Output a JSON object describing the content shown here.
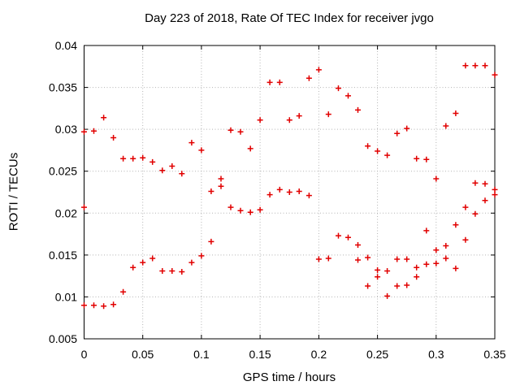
{
  "page": {
    "background": "#ffffff"
  },
  "chart_data": {
    "type": "scatter",
    "title": "Day 223 of 2018, Rate Of TEC Index for receiver jvgo",
    "xlabel": "GPS time / hours",
    "ylabel": "ROTI / TECUs",
    "xlim": [
      0,
      0.35
    ],
    "ylim": [
      0.005,
      0.04
    ],
    "xticks": [
      0,
      0.05,
      0.1,
      0.15,
      0.2,
      0.25,
      0.3,
      0.35
    ],
    "xtick_labels": [
      "0",
      "0.05",
      "0.1",
      "0.15",
      "0.2",
      "0.25",
      "0.3",
      "0.35"
    ],
    "yticks": [
      0.005,
      0.01,
      0.015,
      0.02,
      0.025,
      0.03,
      0.035,
      0.04
    ],
    "ytick_labels": [
      "0.005",
      "0.01",
      "0.015",
      "0.02",
      "0.025",
      "0.03",
      "0.035",
      "0.04"
    ],
    "grid": true,
    "grid_style": "dotted",
    "legend_position": "none",
    "marker": "plus",
    "marker_color": "#e10000",
    "grid_color": "#b3b3b3",
    "axis_color": "#000000",
    "points": [
      [
        0.0,
        0.0297
      ],
      [
        0.0,
        0.0207
      ],
      [
        0.0,
        0.009
      ],
      [
        0.0083,
        0.0298
      ],
      [
        0.0083,
        0.009
      ],
      [
        0.0167,
        0.0314
      ],
      [
        0.0167,
        0.0089
      ],
      [
        0.025,
        0.029
      ],
      [
        0.025,
        0.0091
      ],
      [
        0.0333,
        0.0265
      ],
      [
        0.0333,
        0.0106
      ],
      [
        0.0417,
        0.0265
      ],
      [
        0.0417,
        0.0135
      ],
      [
        0.05,
        0.0266
      ],
      [
        0.05,
        0.0141
      ],
      [
        0.0583,
        0.0261
      ],
      [
        0.0583,
        0.0146
      ],
      [
        0.0667,
        0.0251
      ],
      [
        0.0667,
        0.0131
      ],
      [
        0.075,
        0.0256
      ],
      [
        0.075,
        0.0131
      ],
      [
        0.0833,
        0.0247
      ],
      [
        0.0833,
        0.013
      ],
      [
        0.0917,
        0.0284
      ],
      [
        0.0917,
        0.0141
      ],
      [
        0.1,
        0.0275
      ],
      [
        0.1,
        0.0149
      ],
      [
        0.1083,
        0.0226
      ],
      [
        0.1083,
        0.0166
      ],
      [
        0.1167,
        0.0241
      ],
      [
        0.1167,
        0.0232
      ],
      [
        0.125,
        0.0299
      ],
      [
        0.125,
        0.0207
      ],
      [
        0.1333,
        0.0297
      ],
      [
        0.1333,
        0.0203
      ],
      [
        0.1417,
        0.0277
      ],
      [
        0.1417,
        0.0201
      ],
      [
        0.15,
        0.0311
      ],
      [
        0.15,
        0.0204
      ],
      [
        0.1583,
        0.0356
      ],
      [
        0.1583,
        0.0222
      ],
      [
        0.1667,
        0.0356
      ],
      [
        0.1667,
        0.0228
      ],
      [
        0.175,
        0.0311
      ],
      [
        0.175,
        0.0225
      ],
      [
        0.1833,
        0.0316
      ],
      [
        0.1833,
        0.0226
      ],
      [
        0.1917,
        0.0361
      ],
      [
        0.1917,
        0.0221
      ],
      [
        0.2,
        0.0371
      ],
      [
        0.2,
        0.0145
      ],
      [
        0.2083,
        0.0318
      ],
      [
        0.2083,
        0.0146
      ],
      [
        0.2167,
        0.0349
      ],
      [
        0.2167,
        0.0173
      ],
      [
        0.225,
        0.034
      ],
      [
        0.225,
        0.0171
      ],
      [
        0.2333,
        0.0323
      ],
      [
        0.2333,
        0.0162
      ],
      [
        0.2333,
        0.0144
      ],
      [
        0.2417,
        0.028
      ],
      [
        0.2417,
        0.0147
      ],
      [
        0.2417,
        0.0113
      ],
      [
        0.25,
        0.0274
      ],
      [
        0.25,
        0.0132
      ],
      [
        0.25,
        0.0124
      ],
      [
        0.2583,
        0.0269
      ],
      [
        0.2583,
        0.0131
      ],
      [
        0.2583,
        0.0101
      ],
      [
        0.2667,
        0.0295
      ],
      [
        0.2667,
        0.0145
      ],
      [
        0.2667,
        0.0113
      ],
      [
        0.275,
        0.0301
      ],
      [
        0.275,
        0.0145
      ],
      [
        0.275,
        0.0114
      ],
      [
        0.2833,
        0.0265
      ],
      [
        0.2833,
        0.0135
      ],
      [
        0.2833,
        0.0124
      ],
      [
        0.2917,
        0.0264
      ],
      [
        0.2917,
        0.0179
      ],
      [
        0.2917,
        0.0139
      ],
      [
        0.3,
        0.0241
      ],
      [
        0.3,
        0.0156
      ],
      [
        0.3,
        0.014
      ],
      [
        0.3083,
        0.0304
      ],
      [
        0.3083,
        0.0161
      ],
      [
        0.3083,
        0.0146
      ],
      [
        0.3167,
        0.0319
      ],
      [
        0.3167,
        0.0186
      ],
      [
        0.3167,
        0.0134
      ],
      [
        0.325,
        0.0376
      ],
      [
        0.325,
        0.0207
      ],
      [
        0.325,
        0.0168
      ],
      [
        0.3333,
        0.0376
      ],
      [
        0.3333,
        0.0236
      ],
      [
        0.3333,
        0.0199
      ],
      [
        0.3417,
        0.0376
      ],
      [
        0.3417,
        0.0235
      ],
      [
        0.3417,
        0.0215
      ],
      [
        0.35,
        0.0365
      ],
      [
        0.35,
        0.0228
      ],
      [
        0.35,
        0.0222
      ]
    ]
  }
}
